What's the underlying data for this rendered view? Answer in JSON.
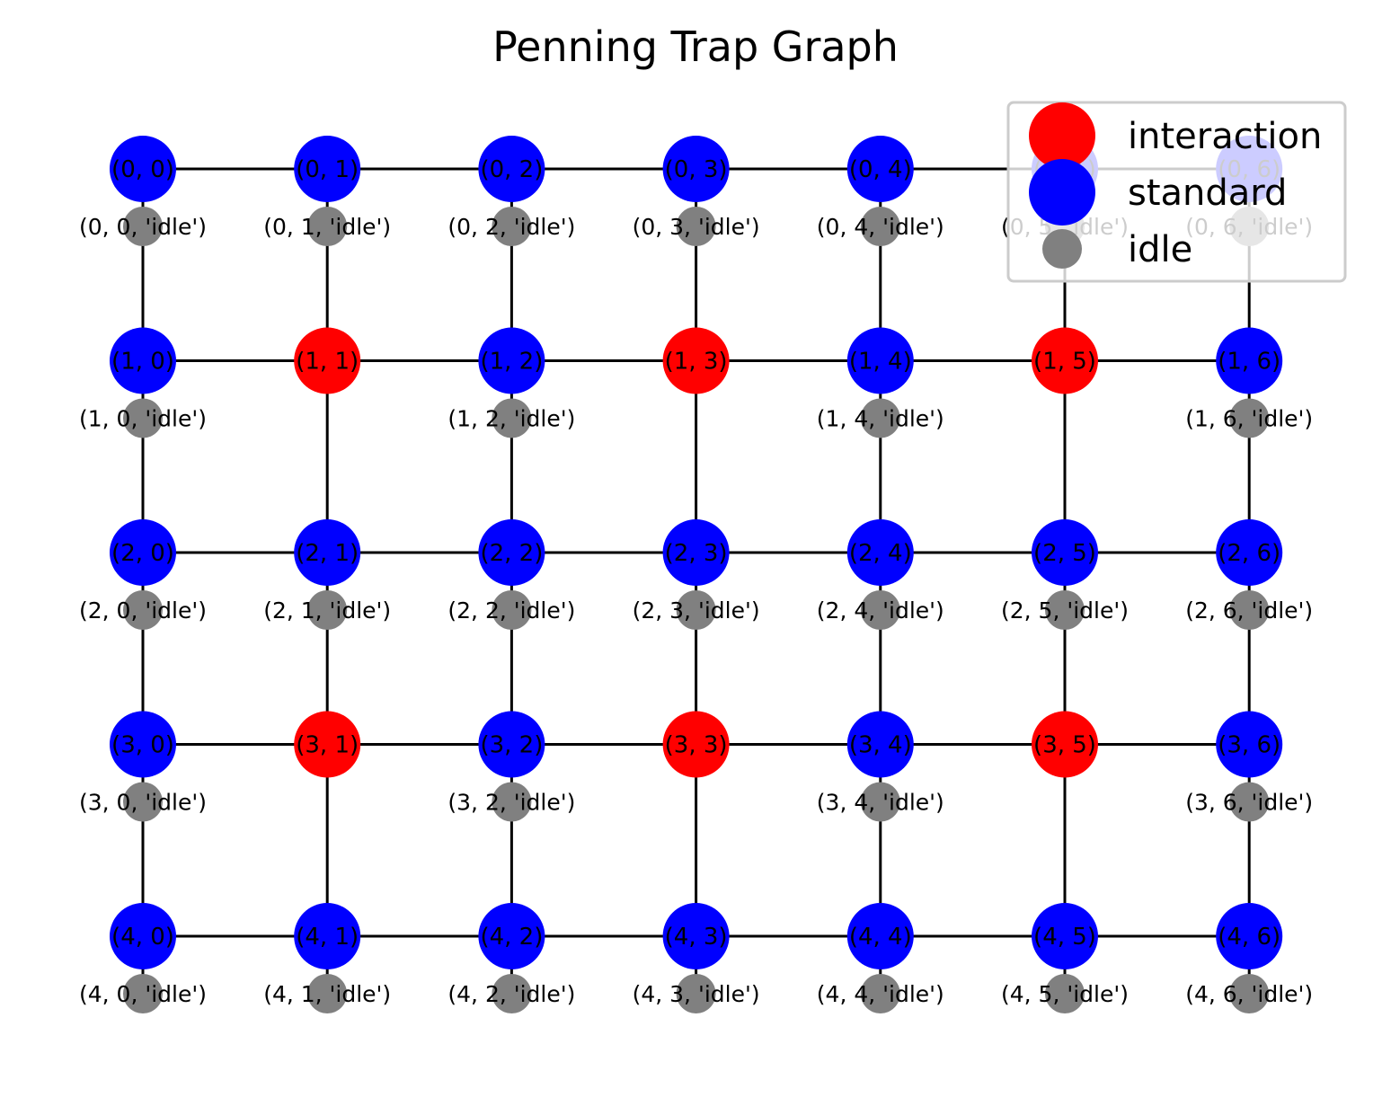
{
  "title": "Penning Trap Graph",
  "colors": {
    "interaction": "#ff0000",
    "standard": "#0000ff",
    "idle": "#808080",
    "edge": "#000000",
    "legend_border": "#cccccc"
  },
  "legend": {
    "placement": "top-right",
    "entries": [
      {
        "key": "interaction",
        "label": "interaction"
      },
      {
        "key": "standard",
        "label": "standard"
      },
      {
        "key": "idle",
        "label": "idle"
      }
    ]
  },
  "grid": {
    "rows": 5,
    "cols": 7
  },
  "nodes": [
    {
      "id": "(0, 0)",
      "row": 0,
      "col": 0,
      "type": "standard"
    },
    {
      "id": "(0, 1)",
      "row": 0,
      "col": 1,
      "type": "standard"
    },
    {
      "id": "(0, 2)",
      "row": 0,
      "col": 2,
      "type": "standard"
    },
    {
      "id": "(0, 3)",
      "row": 0,
      "col": 3,
      "type": "standard"
    },
    {
      "id": "(0, 4)",
      "row": 0,
      "col": 4,
      "type": "standard"
    },
    {
      "id": "(0, 5)",
      "row": 0,
      "col": 5,
      "type": "standard"
    },
    {
      "id": "(0, 6)",
      "row": 0,
      "col": 6,
      "type": "standard"
    },
    {
      "id": "(1, 0)",
      "row": 1,
      "col": 0,
      "type": "standard"
    },
    {
      "id": "(1, 1)",
      "row": 1,
      "col": 1,
      "type": "interaction"
    },
    {
      "id": "(1, 2)",
      "row": 1,
      "col": 2,
      "type": "standard"
    },
    {
      "id": "(1, 3)",
      "row": 1,
      "col": 3,
      "type": "interaction"
    },
    {
      "id": "(1, 4)",
      "row": 1,
      "col": 4,
      "type": "standard"
    },
    {
      "id": "(1, 5)",
      "row": 1,
      "col": 5,
      "type": "interaction"
    },
    {
      "id": "(1, 6)",
      "row": 1,
      "col": 6,
      "type": "standard"
    },
    {
      "id": "(2, 0)",
      "row": 2,
      "col": 0,
      "type": "standard"
    },
    {
      "id": "(2, 1)",
      "row": 2,
      "col": 1,
      "type": "standard"
    },
    {
      "id": "(2, 2)",
      "row": 2,
      "col": 2,
      "type": "standard"
    },
    {
      "id": "(2, 3)",
      "row": 2,
      "col": 3,
      "type": "standard"
    },
    {
      "id": "(2, 4)",
      "row": 2,
      "col": 4,
      "type": "standard"
    },
    {
      "id": "(2, 5)",
      "row": 2,
      "col": 5,
      "type": "standard"
    },
    {
      "id": "(2, 6)",
      "row": 2,
      "col": 6,
      "type": "standard"
    },
    {
      "id": "(3, 0)",
      "row": 3,
      "col": 0,
      "type": "standard"
    },
    {
      "id": "(3, 1)",
      "row": 3,
      "col": 1,
      "type": "interaction"
    },
    {
      "id": "(3, 2)",
      "row": 3,
      "col": 2,
      "type": "standard"
    },
    {
      "id": "(3, 3)",
      "row": 3,
      "col": 3,
      "type": "interaction"
    },
    {
      "id": "(3, 4)",
      "row": 3,
      "col": 4,
      "type": "standard"
    },
    {
      "id": "(3, 5)",
      "row": 3,
      "col": 5,
      "type": "interaction"
    },
    {
      "id": "(3, 6)",
      "row": 3,
      "col": 6,
      "type": "standard"
    },
    {
      "id": "(4, 0)",
      "row": 4,
      "col": 0,
      "type": "standard"
    },
    {
      "id": "(4, 1)",
      "row": 4,
      "col": 1,
      "type": "standard"
    },
    {
      "id": "(4, 2)",
      "row": 4,
      "col": 2,
      "type": "standard"
    },
    {
      "id": "(4, 3)",
      "row": 4,
      "col": 3,
      "type": "standard"
    },
    {
      "id": "(4, 4)",
      "row": 4,
      "col": 4,
      "type": "standard"
    },
    {
      "id": "(4, 5)",
      "row": 4,
      "col": 5,
      "type": "standard"
    },
    {
      "id": "(4, 6)",
      "row": 4,
      "col": 6,
      "type": "standard"
    }
  ],
  "idle_nodes": [
    {
      "id": "(0, 0, 'idle')",
      "row": 0,
      "col": 0
    },
    {
      "id": "(0, 1, 'idle')",
      "row": 0,
      "col": 1
    },
    {
      "id": "(0, 2, 'idle')",
      "row": 0,
      "col": 2
    },
    {
      "id": "(0, 3, 'idle')",
      "row": 0,
      "col": 3
    },
    {
      "id": "(0, 4, 'idle')",
      "row": 0,
      "col": 4
    },
    {
      "id": "(0, 5, 'idle')",
      "row": 0,
      "col": 5
    },
    {
      "id": "(0, 6, 'idle')",
      "row": 0,
      "col": 6
    },
    {
      "id": "(1, 0, 'idle')",
      "row": 1,
      "col": 0
    },
    {
      "id": "(1, 2, 'idle')",
      "row": 1,
      "col": 2
    },
    {
      "id": "(1, 4, 'idle')",
      "row": 1,
      "col": 4
    },
    {
      "id": "(1, 6, 'idle')",
      "row": 1,
      "col": 6
    },
    {
      "id": "(2, 0, 'idle')",
      "row": 2,
      "col": 0
    },
    {
      "id": "(2, 1, 'idle')",
      "row": 2,
      "col": 1
    },
    {
      "id": "(2, 2, 'idle')",
      "row": 2,
      "col": 2
    },
    {
      "id": "(2, 3, 'idle')",
      "row": 2,
      "col": 3
    },
    {
      "id": "(2, 4, 'idle')",
      "row": 2,
      "col": 4
    },
    {
      "id": "(2, 5, 'idle')",
      "row": 2,
      "col": 5
    },
    {
      "id": "(2, 6, 'idle')",
      "row": 2,
      "col": 6
    },
    {
      "id": "(3, 0, 'idle')",
      "row": 3,
      "col": 0
    },
    {
      "id": "(3, 2, 'idle')",
      "row": 3,
      "col": 2
    },
    {
      "id": "(3, 4, 'idle')",
      "row": 3,
      "col": 4
    },
    {
      "id": "(3, 6, 'idle')",
      "row": 3,
      "col": 6
    },
    {
      "id": "(4, 0, 'idle')",
      "row": 4,
      "col": 0
    },
    {
      "id": "(4, 1, 'idle')",
      "row": 4,
      "col": 1
    },
    {
      "id": "(4, 2, 'idle')",
      "row": 4,
      "col": 2
    },
    {
      "id": "(4, 3, 'idle')",
      "row": 4,
      "col": 3
    },
    {
      "id": "(4, 4, 'idle')",
      "row": 4,
      "col": 4
    },
    {
      "id": "(4, 5, 'idle')",
      "row": 4,
      "col": 5
    },
    {
      "id": "(4, 6, 'idle')",
      "row": 4,
      "col": 6
    }
  ]
}
